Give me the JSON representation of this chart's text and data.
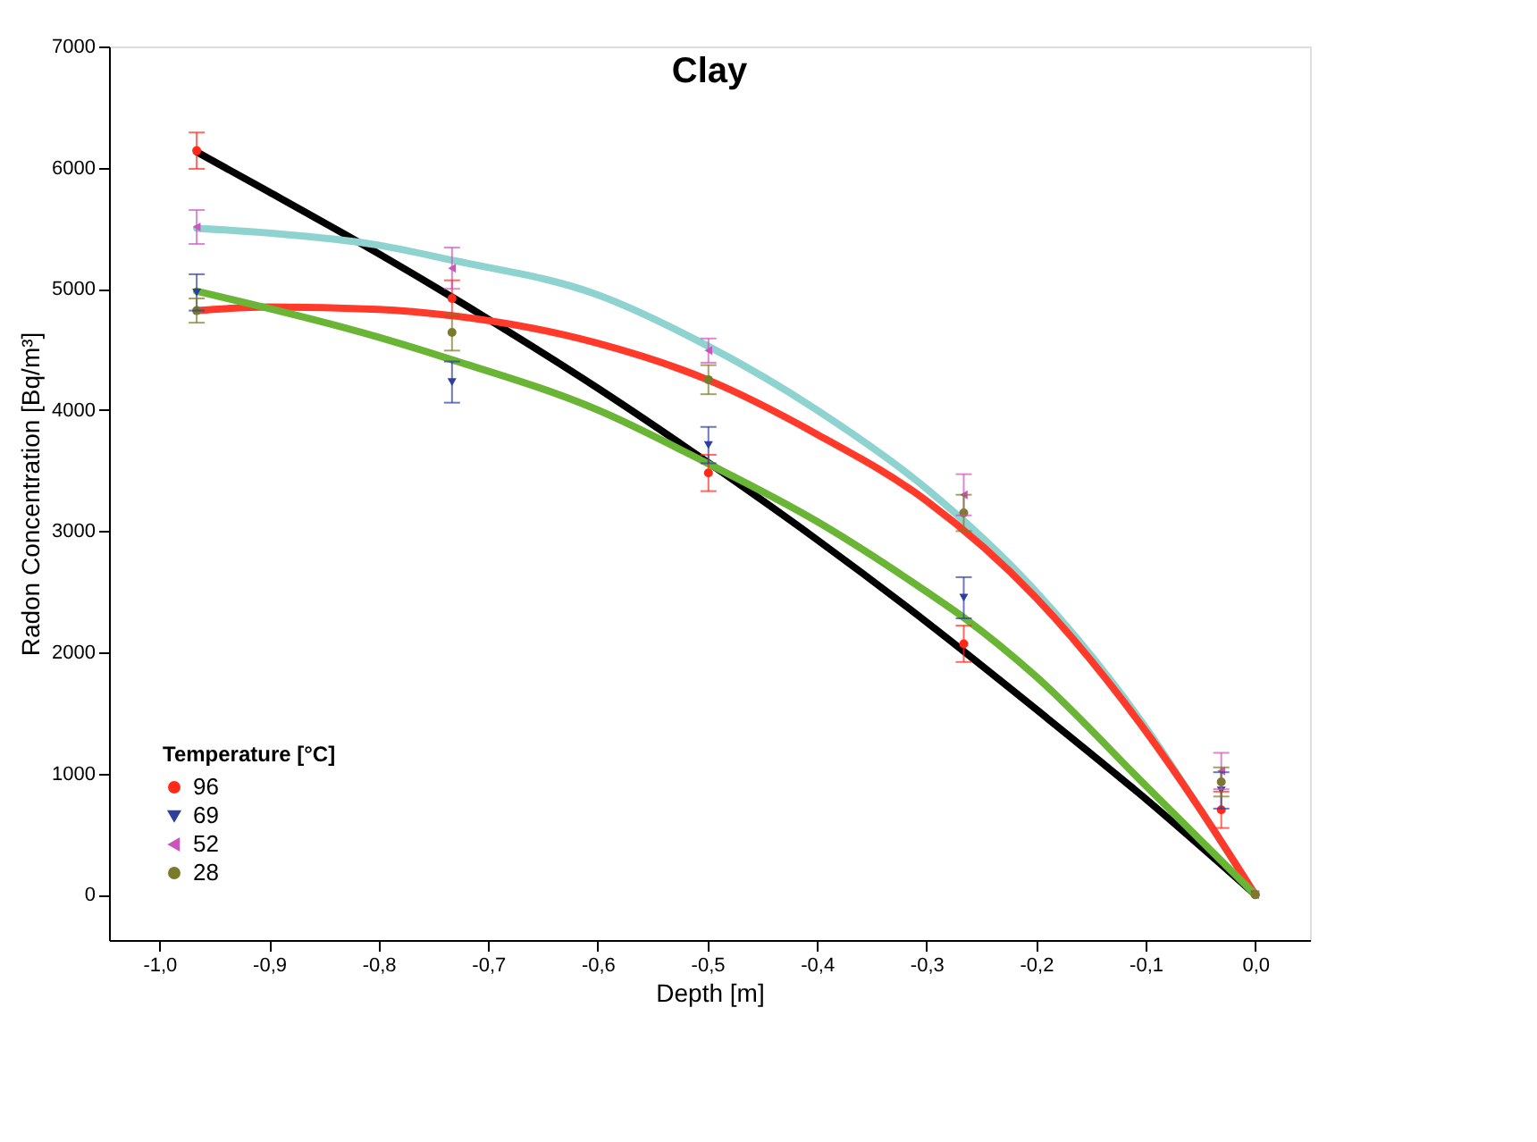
{
  "chart_data": {
    "type": "scatter",
    "title": "Clay",
    "xlabel": "Depth [m]",
    "ylabel": "Radon Concentration [Bq/m³]",
    "legend_title": "Temperature [°C]",
    "legend": "bottom left",
    "grid": false,
    "xlim": [
      -1.046,
      0.05
    ],
    "ylim": [
      -375,
      7000
    ],
    "xticks": [
      {
        "value": -1.0,
        "label": "-1,0"
      },
      {
        "value": -0.9,
        "label": "-0,9"
      },
      {
        "value": -0.8,
        "label": "-0,8"
      },
      {
        "value": -0.7,
        "label": "-0,7"
      },
      {
        "value": -0.6,
        "label": "-0,6"
      },
      {
        "value": -0.5,
        "label": "-0,5"
      },
      {
        "value": -0.4,
        "label": "-0,4"
      },
      {
        "value": -0.3,
        "label": "-0,3"
      },
      {
        "value": -0.2,
        "label": "-0,2"
      },
      {
        "value": -0.1,
        "label": "-0,1"
      },
      {
        "value": 0.0,
        "label": "0,0"
      }
    ],
    "yticks": [
      0,
      1000,
      2000,
      3000,
      4000,
      5000,
      6000,
      7000
    ],
    "series": [
      {
        "name": "96",
        "marker": "circle",
        "color": "#ff2a1a",
        "x": [
          -0.966,
          -0.733,
          -0.499,
          -0.266,
          -0.031,
          0.0
        ],
        "values": [
          6140,
          4920,
          3480,
          2070,
          700,
          0
        ],
        "errors": [
          150,
          150,
          150,
          150,
          150,
          null
        ]
      },
      {
        "name": "69",
        "marker": "triangle-down",
        "color": "#2e3fa0",
        "x": [
          -0.966,
          -0.733,
          -0.499,
          -0.266,
          -0.031,
          0.0
        ],
        "values": [
          4970,
          4230,
          3710,
          2450,
          860,
          0
        ],
        "errors": [
          150,
          170,
          150,
          170,
          150,
          null
        ]
      },
      {
        "name": "52",
        "marker": "triangle-left",
        "color": "#cc55bb",
        "x": [
          -0.966,
          -0.733,
          -0.499,
          -0.266,
          -0.031,
          0.0
        ],
        "values": [
          5510,
          5170,
          4490,
          3300,
          1020,
          0
        ],
        "errors": [
          140,
          170,
          100,
          170,
          150,
          null
        ]
      },
      {
        "name": "28",
        "marker": "circle",
        "color": "#7a7a2a",
        "x": [
          -0.966,
          -0.733,
          -0.499,
          -0.266,
          -0.031,
          0.0
        ],
        "values": [
          4820,
          4640,
          4250,
          3150,
          930,
          0
        ],
        "errors": [
          100,
          150,
          120,
          150,
          120,
          null
        ]
      },
      {
        "type": "line",
        "color": "#000000",
        "x": [
          -0.966,
          -0.9,
          -0.8,
          -0.7,
          -0.6,
          -0.5,
          -0.4,
          -0.3,
          -0.2,
          -0.1,
          0.0
        ],
        "values": [
          6130,
          5800,
          5290,
          4750,
          4180,
          3570,
          2930,
          2250,
          1530,
          790,
          0
        ]
      },
      {
        "type": "line",
        "color": "#8fd3d0",
        "x": [
          -0.966,
          -0.9,
          -0.8,
          -0.735,
          -0.6,
          -0.5,
          -0.4,
          -0.3,
          -0.2,
          -0.1,
          -0.05,
          0.0
        ],
        "values": [
          5500,
          5460,
          5360,
          5240,
          4950,
          4530,
          4000,
          3350,
          2500,
          1380,
          700,
          0
        ]
      },
      {
        "type": "line",
        "color": "#ff3a2a",
        "x": [
          -0.966,
          -0.9,
          -0.8,
          -0.735,
          -0.6,
          -0.5,
          -0.4,
          -0.3,
          -0.2,
          -0.1,
          -0.05,
          0.0
        ],
        "values": [
          4820,
          4850,
          4830,
          4780,
          4550,
          4250,
          3800,
          3250,
          2450,
          1350,
          700,
          0
        ]
      },
      {
        "type": "line",
        "color": "#6ab536",
        "x": [
          -0.966,
          -0.8,
          -0.735,
          -0.6,
          -0.5,
          -0.4,
          -0.3,
          -0.265,
          -0.2,
          -0.1,
          0.0
        ],
        "values": [
          4980,
          4600,
          4420,
          4000,
          3560,
          3080,
          2500,
          2280,
          1800,
          900,
          0
        ]
      }
    ]
  }
}
